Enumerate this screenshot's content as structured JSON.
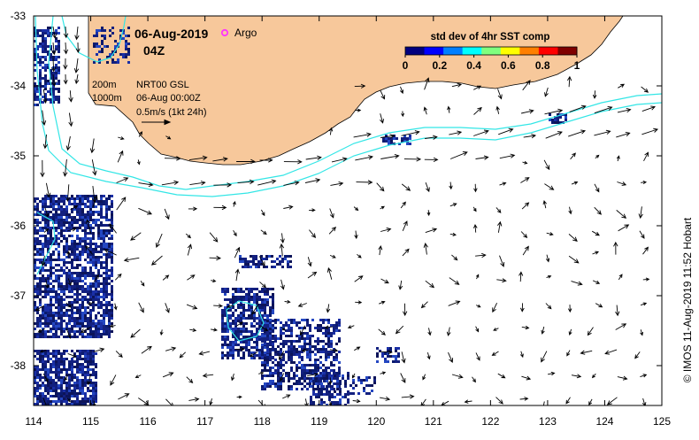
{
  "title": {
    "date": "06-Aug-2019",
    "time": "04Z",
    "argo_label": "Argo"
  },
  "legend_block": {
    "depth_shallow": "200m",
    "depth_deep": "1000m",
    "product": "NRT00 GSL",
    "product_time": "06-Aug 00:00Z",
    "scale_text": "0.5m/s (1kt 24h)"
  },
  "colorbar": {
    "title": "std dev of 4hr SST comp",
    "tick_labels": [
      "0",
      "0.2",
      "0.4",
      "0.6",
      "0.8",
      "1"
    ],
    "colors": [
      "#00007f",
      "#0000ff",
      "#007fff",
      "#00ffff",
      "#7fff7f",
      "#ffff00",
      "#ff7f00",
      "#ff0000",
      "#7f0000"
    ]
  },
  "axes": {
    "x_ticks": [
      "114",
      "115",
      "116",
      "117",
      "118",
      "119",
      "120",
      "121",
      "122",
      "123",
      "124",
      "125"
    ],
    "y_ticks": [
      "-33",
      "-34",
      "-35",
      "-36",
      "-37",
      "-38"
    ]
  },
  "credit": "© IMOS 11-Aug-2019 11:52 Hobart",
  "colors": {
    "land": "#f7c89b",
    "isobath": "#33e6e6",
    "argo": "#ff33ff",
    "sst": "#13207f"
  }
}
